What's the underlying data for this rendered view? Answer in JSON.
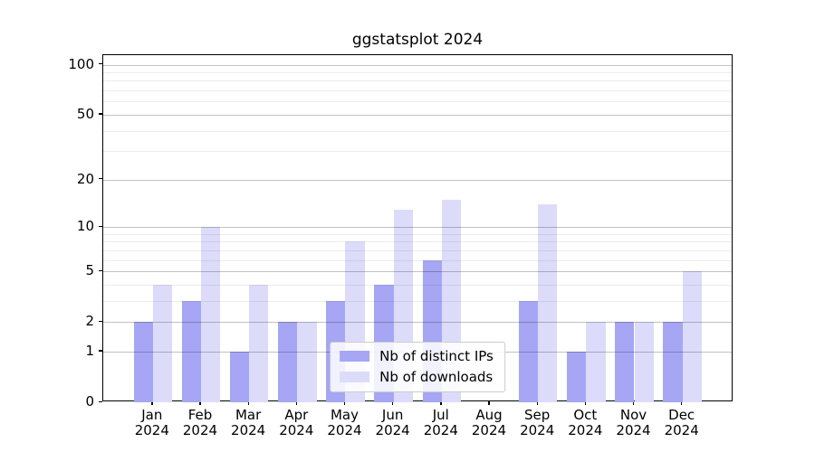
{
  "figure": {
    "title": "ggstatsplot 2024"
  },
  "chart_data": {
    "type": "bar",
    "title": "ggstatsplot 2024",
    "xlabel": "",
    "ylabel": "",
    "year": "2024",
    "categories": [
      "Jan",
      "Feb",
      "Mar",
      "Apr",
      "May",
      "Jun",
      "Jul",
      "Aug",
      "Sep",
      "Oct",
      "Nov",
      "Dec"
    ],
    "series": [
      {
        "name": "Nb of distinct IPs",
        "color": "#a6a6f4",
        "values": [
          2,
          3,
          1,
          2,
          3,
          4,
          6,
          0,
          3,
          1,
          2,
          2
        ]
      },
      {
        "name": "Nb of downloads",
        "color": "#dcdcfa",
        "values": [
          4,
          10,
          4,
          2,
          8,
          13,
          15,
          0,
          14,
          2,
          2,
          5
        ]
      }
    ],
    "yscale": "log1p",
    "ylim": [
      0,
      100
    ],
    "yticks": [
      0,
      1,
      2,
      5,
      10,
      20,
      50,
      100
    ],
    "minor_grid_values": [
      3,
      4,
      6,
      7,
      8,
      9,
      30,
      40,
      60,
      70,
      80,
      90
    ],
    "grid": true,
    "grid_over_bars": true,
    "legend": {
      "position": "lower center",
      "entries": [
        "Nb of distinct IPs",
        "Nb of downloads"
      ]
    },
    "colors": {
      "axis": "#000000",
      "major_grid": "#c2c2c2",
      "minor_grid": "#ebebeb",
      "legend_border": "#cccccc",
      "background": "#ffffff"
    }
  }
}
